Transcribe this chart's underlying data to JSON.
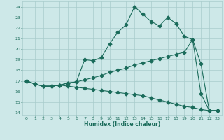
{
  "xlabel": "Humidex (Indice chaleur)",
  "xlim": [
    -0.5,
    23.5
  ],
  "ylim": [
    13.8,
    24.5
  ],
  "yticks": [
    14,
    15,
    16,
    17,
    18,
    19,
    20,
    21,
    22,
    23,
    24
  ],
  "xticks": [
    0,
    1,
    2,
    3,
    4,
    5,
    6,
    7,
    8,
    9,
    10,
    11,
    12,
    13,
    14,
    15,
    16,
    17,
    18,
    19,
    20,
    21,
    22,
    23
  ],
  "bg_color": "#cde8e8",
  "line_color": "#1a6b5a",
  "grid_color": "#a8cccc",
  "line1_x": [
    0,
    1,
    2,
    3,
    4,
    5,
    6,
    7,
    8,
    9,
    10,
    11,
    12,
    13,
    14,
    15,
    16,
    17,
    18,
    19,
    20,
    21,
    22,
    23
  ],
  "line1_y": [
    17.0,
    16.7,
    16.5,
    16.5,
    16.6,
    16.8,
    16.9,
    19.0,
    18.9,
    19.2,
    20.5,
    21.6,
    22.3,
    24.0,
    23.3,
    22.6,
    22.2,
    23.0,
    22.4,
    21.2,
    20.9,
    15.8,
    14.2,
    14.2
  ],
  "line2_x": [
    0,
    1,
    2,
    3,
    4,
    5,
    6,
    7,
    8,
    9,
    10,
    11,
    12,
    13,
    14,
    15,
    16,
    17,
    18,
    19,
    20,
    21,
    22,
    23
  ],
  "line2_y": [
    17.0,
    16.7,
    16.5,
    16.5,
    16.6,
    16.8,
    16.9,
    17.1,
    17.3,
    17.5,
    17.8,
    18.0,
    18.2,
    18.5,
    18.7,
    18.9,
    19.1,
    19.3,
    19.5,
    19.7,
    20.9,
    18.6,
    14.2,
    14.2
  ],
  "line3_x": [
    0,
    1,
    2,
    3,
    4,
    5,
    6,
    7,
    8,
    9,
    10,
    11,
    12,
    13,
    14,
    15,
    16,
    17,
    18,
    19,
    20,
    21,
    22,
    23
  ],
  "line3_y": [
    17.0,
    16.7,
    16.5,
    16.5,
    16.6,
    16.5,
    16.4,
    16.3,
    16.2,
    16.1,
    16.0,
    15.9,
    15.8,
    15.7,
    15.6,
    15.4,
    15.2,
    15.0,
    14.8,
    14.6,
    14.5,
    14.3,
    14.2,
    14.2
  ]
}
